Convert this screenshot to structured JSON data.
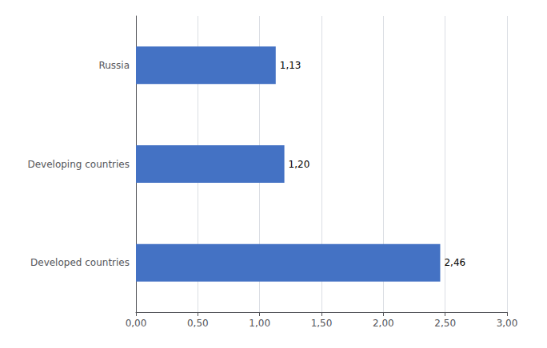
{
  "chart_data": {
    "type": "bar",
    "orientation": "horizontal",
    "categories": [
      "Developed countries",
      "Developing countries",
      "Russia"
    ],
    "values": [
      2.46,
      1.2,
      1.13
    ],
    "value_labels": [
      "2,46",
      "1,20",
      "1,13"
    ],
    "data_labels": true,
    "color": "#4472C4",
    "xlim": [
      0,
      3.0
    ],
    "xticks": [
      {
        "value": 0.0,
        "label": "0,00"
      },
      {
        "value": 0.5,
        "label": "0,50"
      },
      {
        "value": 1.0,
        "label": "1,00"
      },
      {
        "value": 1.5,
        "label": "1,50"
      },
      {
        "value": 2.0,
        "label": "2,00"
      },
      {
        "value": 2.5,
        "label": "2,50"
      },
      {
        "value": 3.0,
        "label": "3,00"
      }
    ],
    "grid": true
  }
}
